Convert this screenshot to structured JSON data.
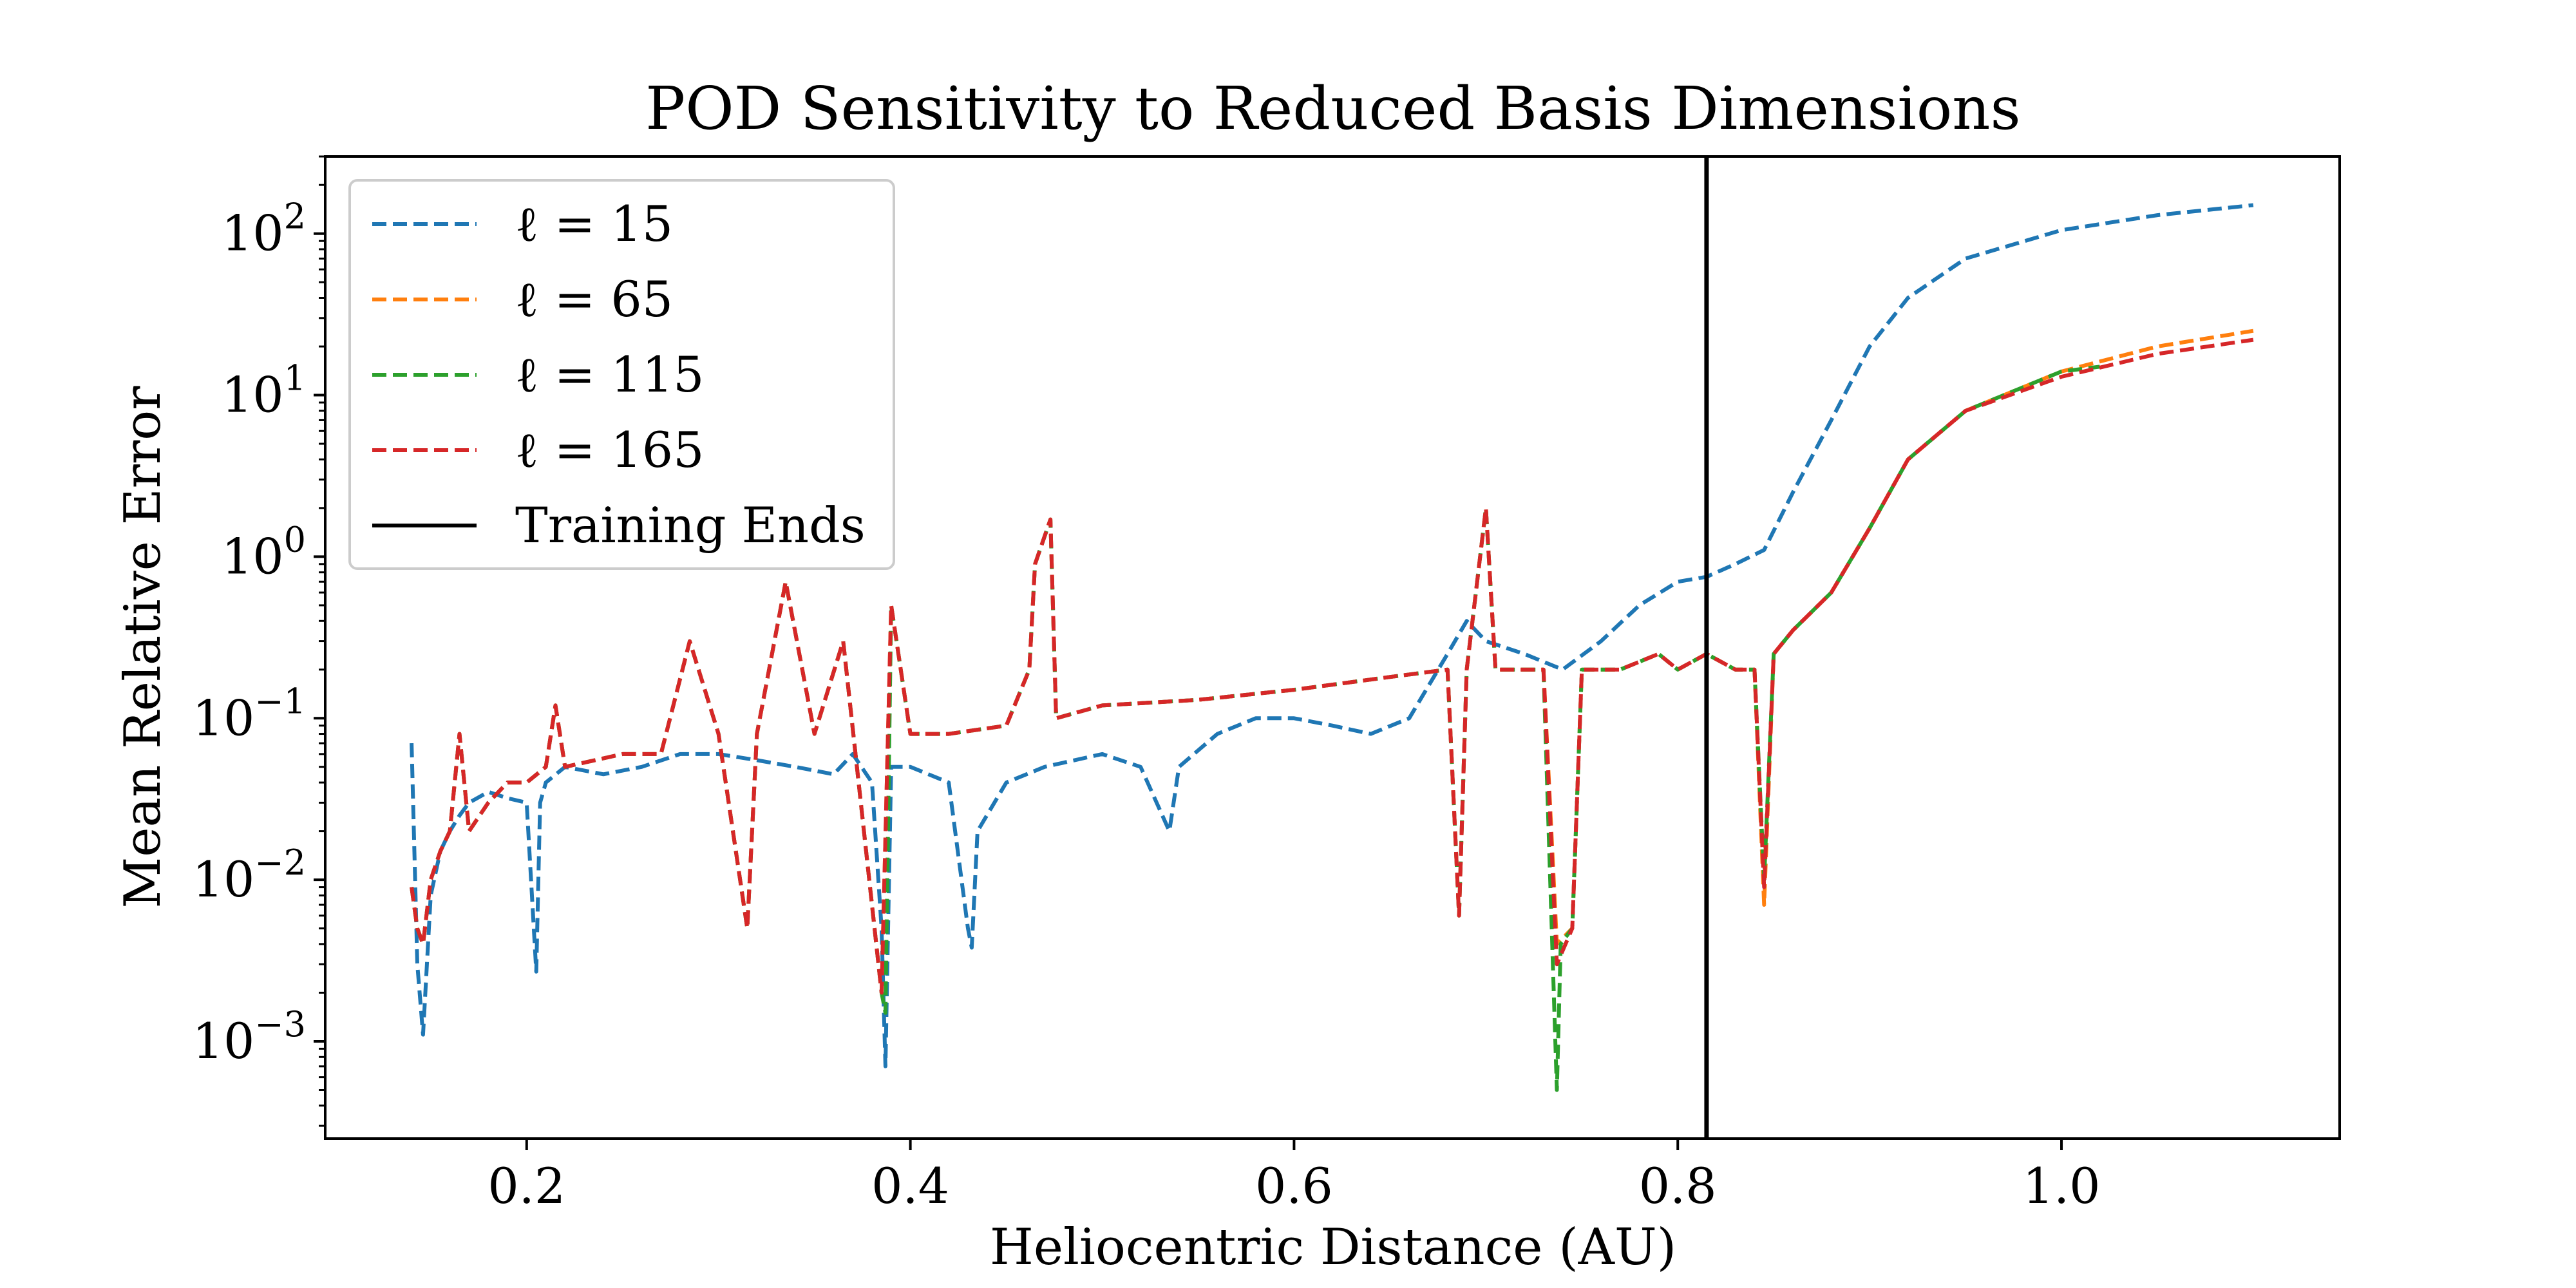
{
  "chart_data": {
    "type": "line",
    "title": "POD Sensitivity to Reduced Basis Dimensions",
    "xlabel": "Heliocentric Distance (AU)",
    "ylabel": "Mean Relative Error",
    "xlim": [
      0.095,
      1.145
    ],
    "ylim": [
      0.00025,
      300
    ],
    "yscale": "log",
    "grid": false,
    "legend_position": "upper-left",
    "x_ticks": [
      {
        "value": 0.2,
        "label": "0.2"
      },
      {
        "value": 0.4,
        "label": "0.4"
      },
      {
        "value": 0.6,
        "label": "0.6"
      },
      {
        "value": 0.8,
        "label": "0.8"
      },
      {
        "value": 1.0,
        "label": "1.0"
      }
    ],
    "y_ticks": [
      {
        "value": 0.001,
        "base": "10",
        "exp": "−3"
      },
      {
        "value": 0.01,
        "base": "10",
        "exp": "−2"
      },
      {
        "value": 0.1,
        "base": "10",
        "exp": "−1"
      },
      {
        "value": 1,
        "base": "10",
        "exp": "0"
      },
      {
        "value": 10,
        "base": "10",
        "exp": "1"
      },
      {
        "value": 100,
        "base": "10",
        "exp": "2"
      }
    ],
    "training_end": {
      "label": "Training Ends",
      "x": 0.815,
      "color": "#000000"
    },
    "series": [
      {
        "name": "ℓ = 15",
        "color": "#1f77b4",
        "x": [
          0.14,
          0.143,
          0.146,
          0.15,
          0.155,
          0.16,
          0.165,
          0.17,
          0.18,
          0.19,
          0.2,
          0.205,
          0.207,
          0.21,
          0.22,
          0.24,
          0.26,
          0.28,
          0.3,
          0.32,
          0.34,
          0.36,
          0.37,
          0.38,
          0.385,
          0.387,
          0.39,
          0.4,
          0.42,
          0.43,
          0.432,
          0.435,
          0.45,
          0.47,
          0.5,
          0.52,
          0.535,
          0.54,
          0.56,
          0.58,
          0.6,
          0.62,
          0.64,
          0.66,
          0.68,
          0.69,
          0.7,
          0.72,
          0.74,
          0.76,
          0.78,
          0.8,
          0.815,
          0.83,
          0.845,
          0.86,
          0.88,
          0.9,
          0.92,
          0.95,
          1.0,
          1.05,
          1.1
        ],
        "y": [
          0.07,
          0.003,
          0.0011,
          0.008,
          0.015,
          0.02,
          0.025,
          0.03,
          0.035,
          0.032,
          0.03,
          0.0027,
          0.03,
          0.04,
          0.05,
          0.045,
          0.05,
          0.06,
          0.06,
          0.055,
          0.05,
          0.045,
          0.06,
          0.04,
          0.005,
          0.0007,
          0.05,
          0.05,
          0.04,
          0.005,
          0.0038,
          0.02,
          0.04,
          0.05,
          0.06,
          0.05,
          0.02,
          0.05,
          0.08,
          0.1,
          0.1,
          0.09,
          0.08,
          0.1,
          0.25,
          0.4,
          0.3,
          0.25,
          0.2,
          0.3,
          0.5,
          0.7,
          0.75,
          0.9,
          1.1,
          2.5,
          7,
          20,
          40,
          70,
          105,
          130,
          150
        ]
      },
      {
        "name": "ℓ = 65",
        "color": "#ff7f0e",
        "x": [
          0.14,
          0.143,
          0.146,
          0.15,
          0.155,
          0.16,
          0.165,
          0.17,
          0.18,
          0.19,
          0.2,
          0.21,
          0.215,
          0.22,
          0.25,
          0.27,
          0.285,
          0.3,
          0.315,
          0.32,
          0.335,
          0.35,
          0.365,
          0.385,
          0.39,
          0.4,
          0.42,
          0.45,
          0.462,
          0.465,
          0.473,
          0.476,
          0.5,
          0.55,
          0.6,
          0.65,
          0.68,
          0.686,
          0.69,
          0.7,
          0.705,
          0.72,
          0.73,
          0.737,
          0.745,
          0.75,
          0.77,
          0.79,
          0.8,
          0.815,
          0.83,
          0.84,
          0.845,
          0.85,
          0.86,
          0.88,
          0.9,
          0.92,
          0.95,
          1.0,
          1.05,
          1.1
        ],
        "y": [
          0.009,
          0.005,
          0.004,
          0.01,
          0.015,
          0.02,
          0.08,
          0.02,
          0.03,
          0.04,
          0.04,
          0.05,
          0.12,
          0.05,
          0.06,
          0.06,
          0.3,
          0.08,
          0.005,
          0.08,
          0.7,
          0.08,
          0.3,
          0.002,
          0.5,
          0.08,
          0.08,
          0.09,
          0.2,
          0.9,
          1.7,
          0.1,
          0.12,
          0.13,
          0.15,
          0.18,
          0.2,
          0.006,
          0.2,
          2.0,
          0.2,
          0.2,
          0.2,
          0.004,
          0.005,
          0.2,
          0.2,
          0.25,
          0.2,
          0.25,
          0.2,
          0.2,
          0.007,
          0.25,
          0.35,
          0.6,
          1.5,
          4,
          8,
          14,
          20,
          25
        ]
      },
      {
        "name": "ℓ = 115",
        "color": "#2ca02c",
        "x": [
          0.14,
          0.143,
          0.146,
          0.15,
          0.155,
          0.16,
          0.165,
          0.17,
          0.18,
          0.19,
          0.2,
          0.21,
          0.215,
          0.22,
          0.25,
          0.27,
          0.285,
          0.3,
          0.315,
          0.32,
          0.335,
          0.35,
          0.365,
          0.385,
          0.387,
          0.39,
          0.4,
          0.42,
          0.45,
          0.462,
          0.465,
          0.473,
          0.476,
          0.5,
          0.55,
          0.6,
          0.65,
          0.68,
          0.686,
          0.69,
          0.7,
          0.705,
          0.72,
          0.73,
          0.737,
          0.739,
          0.745,
          0.75,
          0.77,
          0.79,
          0.8,
          0.815,
          0.83,
          0.84,
          0.845,
          0.85,
          0.86,
          0.88,
          0.9,
          0.92,
          0.95,
          1.0,
          1.02
        ],
        "y": [
          0.009,
          0.005,
          0.004,
          0.01,
          0.015,
          0.02,
          0.08,
          0.02,
          0.03,
          0.04,
          0.04,
          0.05,
          0.12,
          0.05,
          0.06,
          0.06,
          0.3,
          0.08,
          0.005,
          0.08,
          0.7,
          0.08,
          0.3,
          0.002,
          0.0015,
          0.5,
          0.08,
          0.08,
          0.09,
          0.2,
          0.9,
          1.7,
          0.1,
          0.12,
          0.13,
          0.15,
          0.18,
          0.2,
          0.006,
          0.2,
          2.0,
          0.2,
          0.2,
          0.2,
          0.0005,
          0.004,
          0.005,
          0.2,
          0.2,
          0.25,
          0.2,
          0.25,
          0.2,
          0.2,
          0.01,
          0.25,
          0.35,
          0.6,
          1.5,
          4,
          8,
          14,
          15
        ]
      },
      {
        "name": "ℓ = 165",
        "color": "#d62728",
        "x": [
          0.14,
          0.143,
          0.146,
          0.15,
          0.155,
          0.16,
          0.165,
          0.17,
          0.18,
          0.19,
          0.2,
          0.21,
          0.215,
          0.22,
          0.25,
          0.27,
          0.285,
          0.3,
          0.315,
          0.32,
          0.335,
          0.35,
          0.365,
          0.385,
          0.39,
          0.4,
          0.42,
          0.45,
          0.462,
          0.465,
          0.473,
          0.476,
          0.5,
          0.55,
          0.6,
          0.65,
          0.68,
          0.686,
          0.69,
          0.7,
          0.705,
          0.72,
          0.73,
          0.737,
          0.745,
          0.75,
          0.77,
          0.79,
          0.8,
          0.815,
          0.83,
          0.84,
          0.845,
          0.85,
          0.86,
          0.88,
          0.9,
          0.92,
          0.95,
          1.0,
          1.05,
          1.1
        ],
        "y": [
          0.009,
          0.005,
          0.004,
          0.01,
          0.015,
          0.02,
          0.08,
          0.02,
          0.03,
          0.04,
          0.04,
          0.05,
          0.12,
          0.05,
          0.06,
          0.06,
          0.3,
          0.08,
          0.005,
          0.08,
          0.7,
          0.08,
          0.3,
          0.002,
          0.5,
          0.08,
          0.08,
          0.09,
          0.2,
          0.9,
          1.7,
          0.1,
          0.12,
          0.13,
          0.15,
          0.18,
          0.2,
          0.006,
          0.2,
          2.0,
          0.2,
          0.2,
          0.2,
          0.003,
          0.005,
          0.2,
          0.2,
          0.25,
          0.2,
          0.25,
          0.2,
          0.2,
          0.009,
          0.25,
          0.35,
          0.6,
          1.5,
          4,
          8,
          13,
          18,
          22
        ]
      }
    ]
  }
}
